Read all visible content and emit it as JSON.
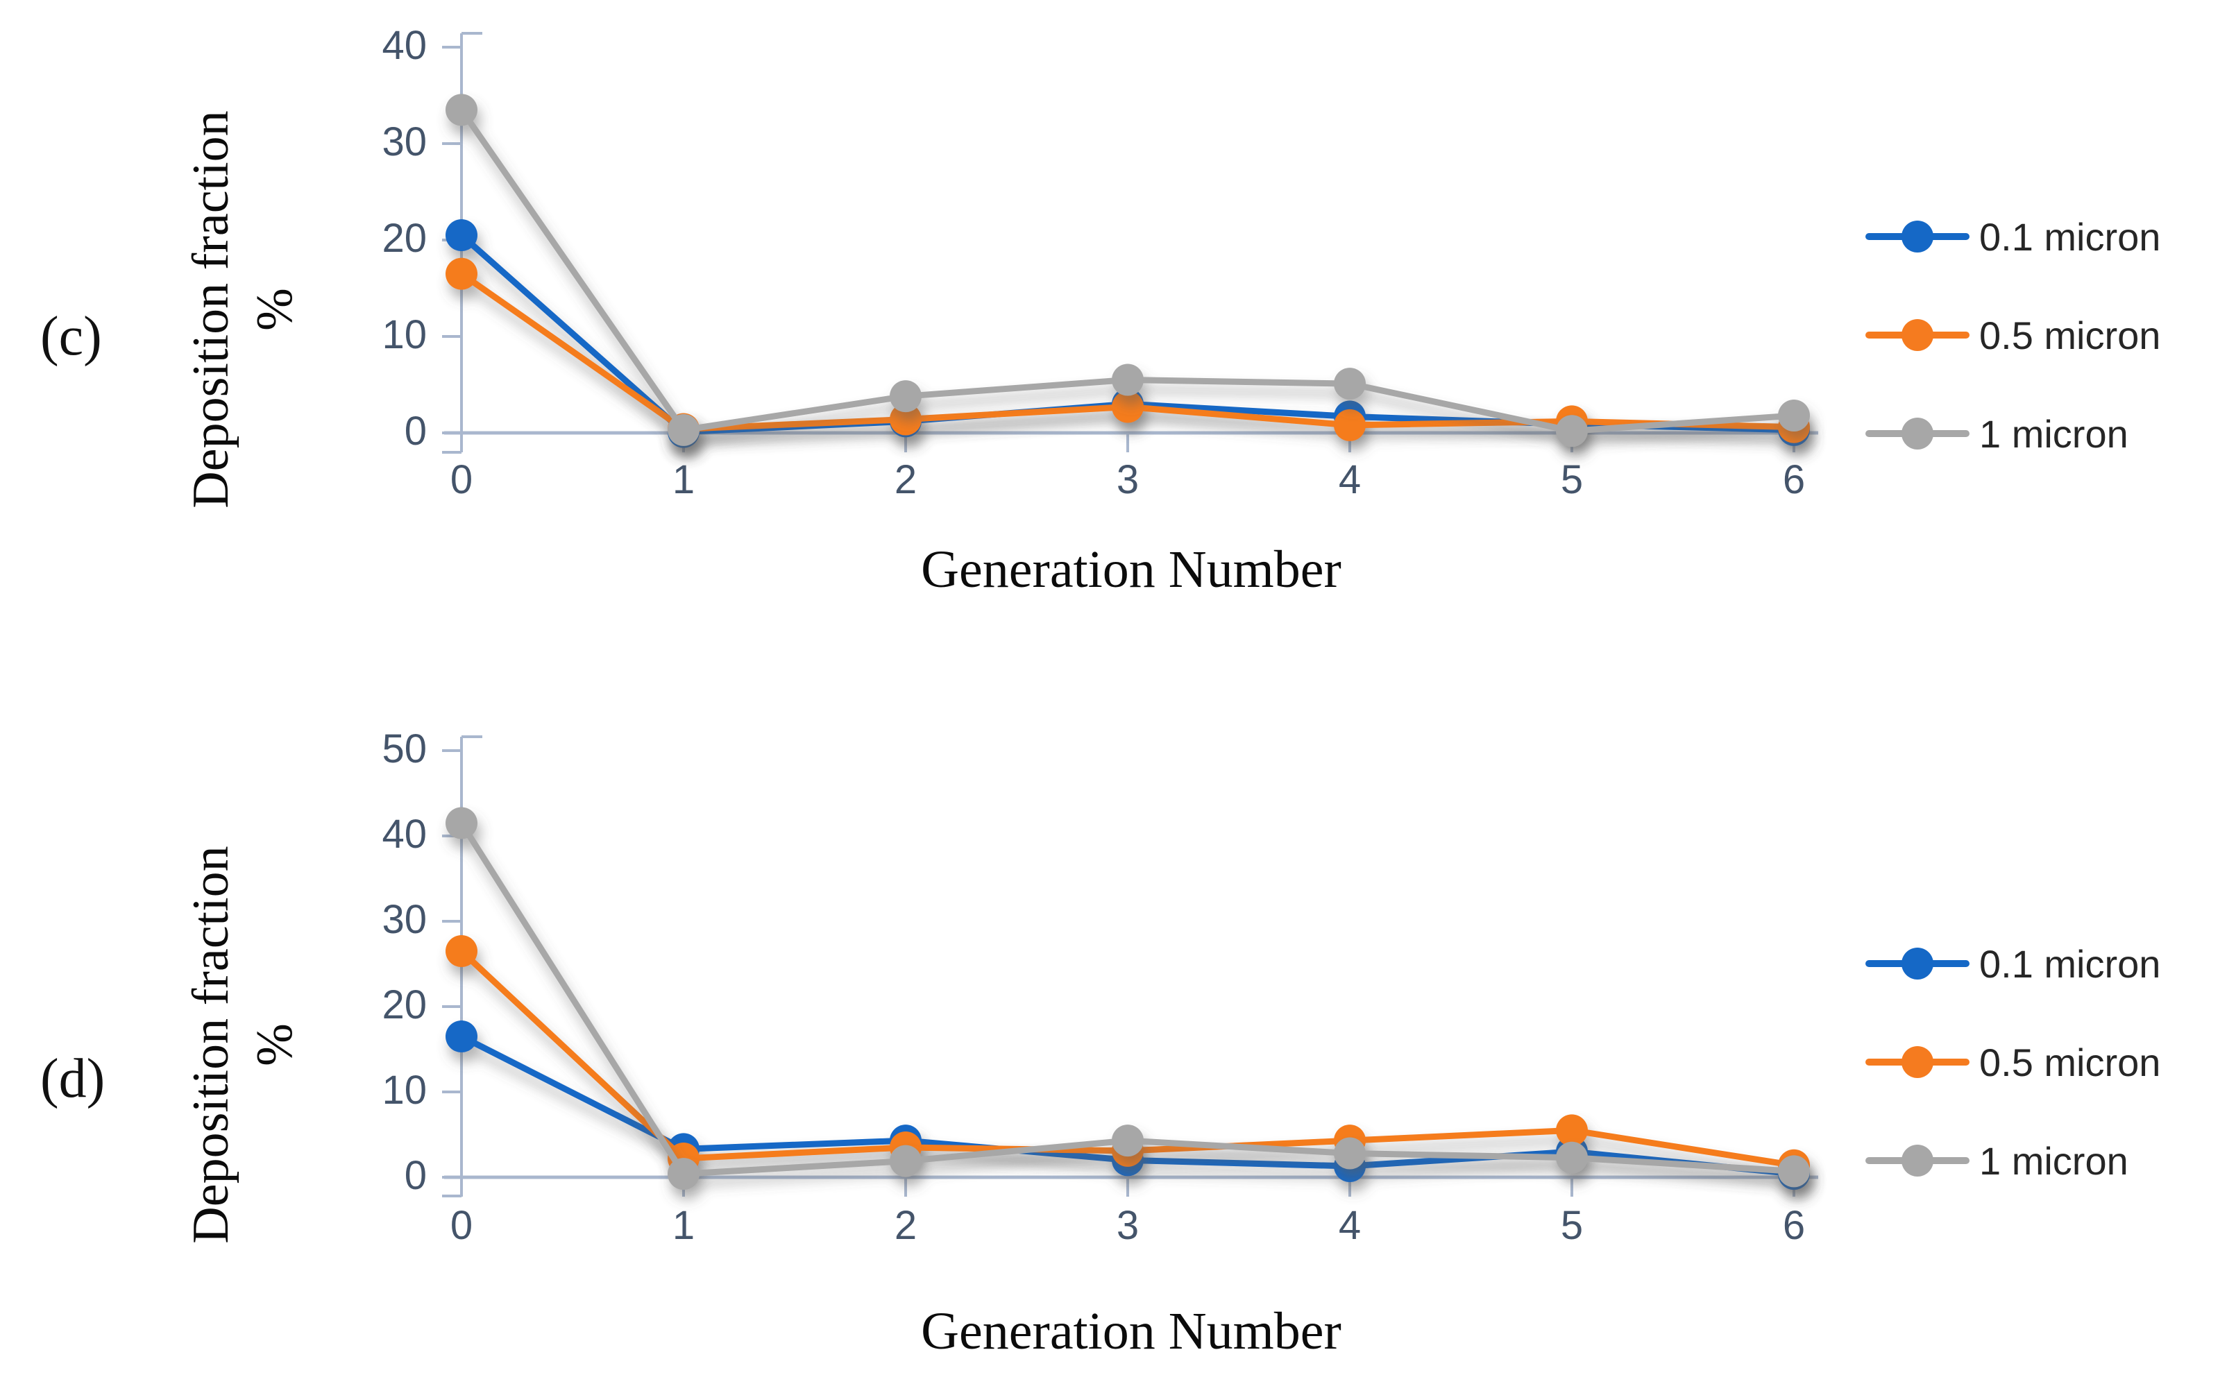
{
  "figure_type": "two-panel line chart figure",
  "chart_data": [
    {
      "type": "line",
      "tag": "(c)",
      "xlabel": "Generation Number",
      "ylabel_line1": "Deposition fraction",
      "ylabel_line2": "%",
      "x": [
        0,
        1,
        2,
        3,
        4,
        5,
        6
      ],
      "xticks": [
        "0",
        "1",
        "2",
        "3",
        "4",
        "5",
        "6"
      ],
      "yticks": [
        "0",
        "10",
        "20",
        "30",
        "40"
      ],
      "ylim": [
        0,
        40
      ],
      "grid": "zero-line only",
      "legend_position": "right",
      "series": [
        {
          "name": "0.1 micron",
          "color": "#1568C6",
          "values": [
            20.5,
            0.1,
            1.2,
            3.0,
            1.7,
            0.9,
            0.3
          ]
        },
        {
          "name": "0.5 micron",
          "color": "#F57B1F",
          "values": [
            16.5,
            0.4,
            1.4,
            2.7,
            0.8,
            1.2,
            0.6
          ]
        },
        {
          "name": "1 micron",
          "color": "#A7A7A7",
          "values": [
            33.5,
            0.3,
            3.8,
            5.5,
            5.1,
            0.2,
            1.8
          ]
        }
      ]
    },
    {
      "type": "line",
      "tag": "(d)",
      "xlabel": "Generation Number",
      "ylabel_line1": "Deposition fraction",
      "ylabel_line2": "%",
      "x": [
        0,
        1,
        2,
        3,
        4,
        5,
        6
      ],
      "xticks": [
        "0",
        "1",
        "2",
        "3",
        "4",
        "5",
        "6"
      ],
      "yticks": [
        "0",
        "10",
        "20",
        "30",
        "40",
        "50"
      ],
      "ylim": [
        0,
        50
      ],
      "grid": "zero-line only",
      "legend_position": "right",
      "series": [
        {
          "name": "0.1 micron",
          "color": "#1568C6",
          "values": [
            16.5,
            3.3,
            4.3,
            2.0,
            1.3,
            3.0,
            0.4
          ]
        },
        {
          "name": "0.5 micron",
          "color": "#F57B1F",
          "values": [
            26.5,
            2.2,
            3.5,
            3.1,
            4.3,
            5.5,
            1.4
          ]
        },
        {
          "name": "1 micron",
          "color": "#A7A7A7",
          "values": [
            41.5,
            0.4,
            1.9,
            4.3,
            2.8,
            2.3,
            0.7
          ]
        }
      ]
    }
  ],
  "style_colors": {
    "axis_line": "#A9B7CE",
    "zero_line": "#D9DFE8",
    "tick_label": "#44546A",
    "legend_text": "#262626"
  }
}
